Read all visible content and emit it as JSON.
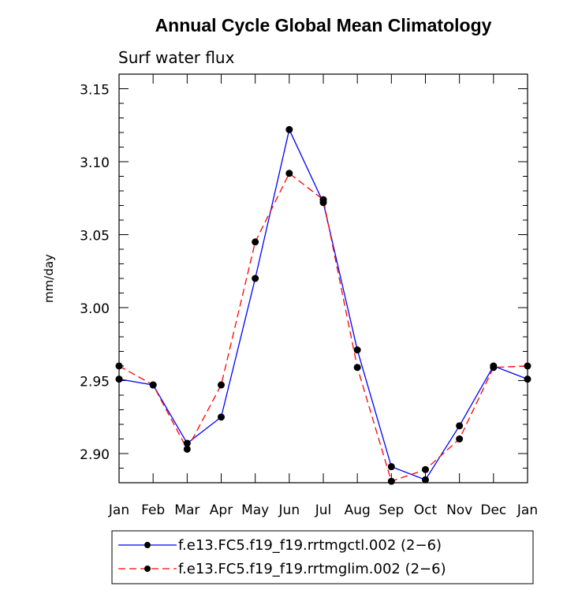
{
  "chart_data": {
    "type": "line",
    "title": "Annual Cycle Global Mean Climatology",
    "subtitle": "Surf water flux",
    "xlabel": "",
    "ylabel": "mm/day",
    "categories": [
      "Jan",
      "Feb",
      "Mar",
      "Apr",
      "May",
      "Jun",
      "Jul",
      "Aug",
      "Sep",
      "Oct",
      "Nov",
      "Dec",
      "Jan"
    ],
    "ylim": [
      2.88,
      3.16
    ],
    "yticks": [
      2.9,
      2.95,
      3.0,
      3.05,
      3.1,
      3.15
    ],
    "ytick_labels": [
      "2.90",
      "2.95",
      "3.00",
      "3.05",
      "3.10",
      "3.15"
    ],
    "series": [
      {
        "name": "f.e13.FC5.f19_f19.rrtmgctl.002 (2−6)",
        "color": "#0000ff",
        "dash": "solid",
        "values": [
          2.951,
          2.947,
          2.907,
          2.925,
          3.02,
          3.122,
          3.072,
          2.971,
          2.891,
          2.882,
          2.919,
          2.96,
          2.951
        ]
      },
      {
        "name": "f.e13.FC5.f19_f19.rrtmglim.002 (2−6)",
        "color": "#ff0000",
        "dash": "dashed",
        "values": [
          2.96,
          2.947,
          2.903,
          2.947,
          3.045,
          3.092,
          3.074,
          2.959,
          2.881,
          2.889,
          2.91,
          2.959,
          2.96
        ]
      }
    ],
    "grid": false,
    "legend": "bottom"
  }
}
